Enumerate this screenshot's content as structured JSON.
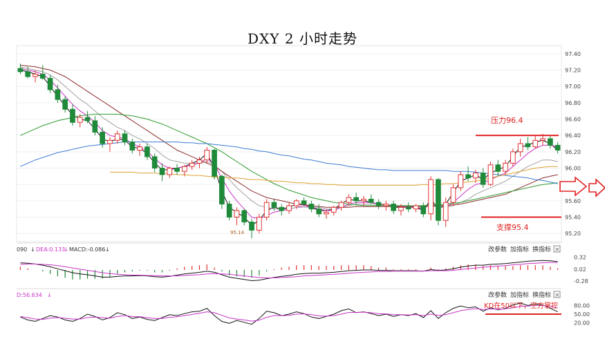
{
  "title": "DXY 2 小时走势",
  "price_axis": {
    "ticks": [
      "97.40",
      "97.20",
      "97.00",
      "96.80",
      "96.60",
      "96.40",
      "96.20",
      "96.00",
      "95.80",
      "95.60",
      "95.40",
      "95.20"
    ]
  },
  "macd_axis": {
    "ticks": [
      "0.32",
      "0.02",
      "-0.28"
    ]
  },
  "kd_axis": {
    "ticks": [
      "80.00",
      "50.00",
      "20.00"
    ]
  },
  "macd_header": {
    "dif_fragment": "090",
    "dea": "DEA:0.133",
    "macd": "MACD:-0.086"
  },
  "kd_header": {
    "d": "D:56.634"
  },
  "panel_buttons": {
    "params": "改参数",
    "add": "加指标",
    "switch": "换指标",
    "close": "×"
  },
  "annotations": {
    "resistance": "压力96.4",
    "support": "支撑95.4",
    "low": "95.14",
    "kd_note": "KD在50以下，空方掌控"
  },
  "colors": {
    "annotation": "#e02020",
    "up": "#e03030",
    "down": "#1f8a3a",
    "ma_black": "#111111",
    "ma_magenta": "#c832c8",
    "ma_gray": "#a0a0a0",
    "ma_brown": "#8b2a2a",
    "ma_green": "#2e9a2e",
    "ma_blue": "#3a7bd5",
    "ma_orange": "#e0a030"
  },
  "chart_data": {
    "type": "candlestick",
    "title": "DXY 2 小时走势",
    "ylim": [
      95.1,
      97.5
    ],
    "candles": [
      [
        97.22,
        97.28,
        97.15,
        97.18
      ],
      [
        97.18,
        97.24,
        97.1,
        97.12
      ],
      [
        97.12,
        97.2,
        97.05,
        97.15
      ],
      [
        97.15,
        97.26,
        97.08,
        97.1
      ],
      [
        97.1,
        97.14,
        96.92,
        96.96
      ],
      [
        96.96,
        97.02,
        96.8,
        96.84
      ],
      [
        96.84,
        96.88,
        96.68,
        96.72
      ],
      [
        96.72,
        96.78,
        96.52,
        96.56
      ],
      [
        96.56,
        96.66,
        96.5,
        96.62
      ],
      [
        96.62,
        96.7,
        96.55,
        96.58
      ],
      [
        96.58,
        96.64,
        96.4,
        96.44
      ],
      [
        96.44,
        96.5,
        96.25,
        96.3
      ],
      [
        96.3,
        96.38,
        96.2,
        96.34
      ],
      [
        96.34,
        96.46,
        96.3,
        96.42
      ],
      [
        96.42,
        96.46,
        96.28,
        96.32
      ],
      [
        96.32,
        96.36,
        96.18,
        96.22
      ],
      [
        96.22,
        96.3,
        96.15,
        96.26
      ],
      [
        96.26,
        96.3,
        96.1,
        96.14
      ],
      [
        96.14,
        96.18,
        95.95,
        96.0
      ],
      [
        96.0,
        96.06,
        95.84,
        95.92
      ],
      [
        95.92,
        96.02,
        95.88,
        96.0
      ],
      [
        96.0,
        96.05,
        95.92,
        95.96
      ],
      [
        95.96,
        96.04,
        95.9,
        96.02
      ],
      [
        96.02,
        96.1,
        95.98,
        96.06
      ],
      [
        96.06,
        96.14,
        96.0,
        96.1
      ],
      [
        96.1,
        96.26,
        96.06,
        96.22
      ],
      [
        96.22,
        96.24,
        95.86,
        95.9
      ],
      [
        95.9,
        95.92,
        95.5,
        95.56
      ],
      [
        95.56,
        95.6,
        95.36,
        95.4
      ],
      [
        95.4,
        95.52,
        95.3,
        95.48
      ],
      [
        95.48,
        95.5,
        95.3,
        95.34
      ],
      [
        95.34,
        95.38,
        95.14,
        95.24
      ],
      [
        95.24,
        95.44,
        95.2,
        95.4
      ],
      [
        95.4,
        95.62,
        95.36,
        95.58
      ],
      [
        95.58,
        95.62,
        95.48,
        95.52
      ],
      [
        95.52,
        95.56,
        95.42,
        95.48
      ],
      [
        95.48,
        95.58,
        95.44,
        95.54
      ],
      [
        95.54,
        95.62,
        95.5,
        95.6
      ],
      [
        95.6,
        95.64,
        95.54,
        95.56
      ],
      [
        95.56,
        95.6,
        95.46,
        95.5
      ],
      [
        95.5,
        95.56,
        95.4,
        95.44
      ],
      [
        95.44,
        95.5,
        95.38,
        95.46
      ],
      [
        95.46,
        95.54,
        95.42,
        95.52
      ],
      [
        95.52,
        95.6,
        95.48,
        95.58
      ],
      [
        95.58,
        95.68,
        95.54,
        95.64
      ],
      [
        95.64,
        95.7,
        95.56,
        95.6
      ],
      [
        95.6,
        95.66,
        95.54,
        95.62
      ],
      [
        95.62,
        95.68,
        95.56,
        95.58
      ],
      [
        95.58,
        95.62,
        95.5,
        95.54
      ],
      [
        95.54,
        95.6,
        95.48,
        95.56
      ],
      [
        95.56,
        95.6,
        95.44,
        95.48
      ],
      [
        95.48,
        95.56,
        95.42,
        95.52
      ],
      [
        95.52,
        95.58,
        95.46,
        95.5
      ],
      [
        95.5,
        95.56,
        95.46,
        95.54
      ],
      [
        95.54,
        95.58,
        95.4,
        95.44
      ],
      [
        95.44,
        95.9,
        95.36,
        95.86
      ],
      [
        95.86,
        95.88,
        95.3,
        95.36
      ],
      [
        95.36,
        95.64,
        95.28,
        95.58
      ],
      [
        95.58,
        95.8,
        95.54,
        95.76
      ],
      [
        95.76,
        95.96,
        95.72,
        95.92
      ],
      [
        95.92,
        96.02,
        95.84,
        95.88
      ],
      [
        95.88,
        95.98,
        95.82,
        95.94
      ],
      [
        95.94,
        96.0,
        95.76,
        95.8
      ],
      [
        95.8,
        96.08,
        95.78,
        96.04
      ],
      [
        96.04,
        96.1,
        95.9,
        95.96
      ],
      [
        95.96,
        96.1,
        95.92,
        96.06
      ],
      [
        96.06,
        96.24,
        96.02,
        96.2
      ],
      [
        96.2,
        96.36,
        96.14,
        96.3
      ],
      [
        96.3,
        96.38,
        96.22,
        96.26
      ],
      [
        96.26,
        96.4,
        96.24,
        96.34
      ],
      [
        96.34,
        96.42,
        96.28,
        96.36
      ],
      [
        96.36,
        96.4,
        96.24,
        96.28
      ],
      [
        96.28,
        96.32,
        96.18,
        96.22
      ]
    ],
    "moving_averages": [
      {
        "values": [
          97.2,
          97.18,
          97.15,
          97.12,
          97.0,
          96.88,
          96.76,
          96.65,
          96.6,
          96.58,
          96.48,
          96.36,
          96.32,
          96.36,
          96.34,
          96.26,
          96.24,
          96.18,
          96.06,
          95.98,
          95.98,
          96.0,
          96.02,
          96.06,
          96.1,
          96.18,
          96.0,
          95.72,
          95.52,
          95.46,
          95.4,
          95.3,
          95.36,
          95.48,
          95.52,
          95.5,
          95.52,
          95.56,
          95.56,
          95.52,
          95.48,
          95.48,
          95.5,
          95.56,
          95.62,
          95.6,
          95.6,
          95.58,
          95.56,
          95.55,
          95.52,
          95.52,
          95.52,
          95.52,
          95.48,
          95.62,
          95.5,
          95.56,
          95.7,
          95.84,
          95.88,
          95.92,
          95.86,
          95.94,
          95.98,
          96.02,
          96.14,
          96.26,
          96.28,
          96.32,
          96.34,
          96.3,
          96.22
        ]
      },
      {
        "values": [
          97.22,
          97.2,
          97.18,
          97.15,
          97.08,
          96.98,
          96.88,
          96.78,
          96.7,
          96.64,
          96.56,
          96.46,
          96.4,
          96.38,
          96.36,
          96.3,
          96.26,
          96.2,
          96.12,
          96.04,
          96.0,
          96.0,
          96.02,
          96.04,
          96.06,
          96.12,
          96.04,
          95.88,
          95.72,
          95.6,
          95.5,
          95.4,
          95.38,
          95.42,
          95.46,
          95.48,
          95.5,
          95.52,
          95.54,
          95.52,
          95.5,
          95.48,
          95.48,
          95.52,
          95.56,
          95.58,
          95.58,
          95.58,
          95.56,
          95.56,
          95.54,
          95.52,
          95.52,
          95.52,
          95.5,
          95.56,
          95.52,
          95.52,
          95.58,
          95.66,
          95.74,
          95.8,
          95.82,
          95.86,
          95.9,
          95.94,
          96.02,
          96.1,
          96.18,
          96.24,
          96.28,
          96.28,
          96.26
        ]
      },
      {
        "values": [
          97.24,
          97.22,
          97.2,
          97.18,
          97.14,
          97.08,
          97.0,
          96.92,
          96.84,
          96.78,
          96.7,
          96.62,
          96.56,
          96.5,
          96.46,
          96.4,
          96.36,
          96.3,
          96.24,
          96.16,
          96.1,
          96.08,
          96.06,
          96.06,
          96.06,
          96.08,
          96.04,
          95.96,
          95.86,
          95.76,
          95.68,
          95.6,
          95.54,
          95.52,
          95.5,
          95.5,
          95.5,
          95.52,
          95.52,
          95.52,
          95.52,
          95.5,
          95.5,
          95.52,
          95.54,
          95.56,
          95.56,
          95.56,
          95.56,
          95.56,
          95.54,
          95.54,
          95.54,
          95.52,
          95.52,
          95.54,
          95.52,
          95.52,
          95.54,
          95.58,
          95.62,
          95.68,
          95.72,
          95.76,
          95.8,
          95.84,
          95.9,
          95.96,
          96.02,
          96.06,
          96.1,
          96.1,
          96.08
        ]
      },
      {
        "values": [
          97.26,
          97.25,
          97.24,
          97.22,
          97.2,
          97.16,
          97.12,
          97.06,
          97.0,
          96.94,
          96.88,
          96.82,
          96.76,
          96.7,
          96.64,
          96.58,
          96.52,
          96.46,
          96.4,
          96.34,
          96.28,
          96.22,
          96.18,
          96.14,
          96.1,
          96.06,
          96.02,
          95.96,
          95.9,
          95.84,
          95.78,
          95.72,
          95.68,
          95.64,
          95.62,
          95.6,
          95.58,
          95.56,
          95.55,
          95.54,
          95.53,
          95.52,
          95.52,
          95.52,
          95.52,
          95.53,
          95.53,
          95.53,
          95.53,
          95.53,
          95.53,
          95.53,
          95.53,
          95.53,
          95.53,
          95.54,
          95.54,
          95.54,
          95.55,
          95.56,
          95.58,
          95.6,
          95.62,
          95.64,
          95.66,
          95.68,
          95.72,
          95.76,
          95.8,
          95.84,
          95.88,
          95.9,
          95.92
        ]
      },
      {
        "values": [
          96.4,
          96.44,
          96.48,
          96.52,
          96.55,
          96.58,
          96.6,
          96.62,
          96.64,
          96.65,
          96.66,
          96.66,
          96.66,
          96.66,
          96.65,
          96.64,
          96.62,
          96.6,
          96.57,
          96.54,
          96.5,
          96.46,
          96.42,
          96.38,
          96.34,
          96.3,
          96.25,
          96.2,
          96.14,
          96.08,
          96.02,
          95.96,
          95.91,
          95.86,
          95.81,
          95.77,
          95.73,
          95.7,
          95.67,
          95.64,
          95.62,
          95.6,
          95.58,
          95.57,
          95.56,
          95.55,
          95.54,
          95.54,
          95.54,
          95.54,
          95.54,
          95.54,
          95.54,
          95.54,
          95.54,
          95.55,
          95.55,
          95.56,
          95.57,
          95.58,
          95.6,
          95.62,
          95.64,
          95.66,
          95.68,
          95.7,
          95.72,
          95.74,
          95.76,
          95.78,
          95.8,
          95.81,
          95.82
        ]
      },
      {
        "values": [
          96.02,
          96.06,
          96.1,
          96.13,
          96.16,
          96.19,
          96.21,
          96.23,
          96.25,
          96.27,
          96.28,
          96.29,
          96.3,
          96.31,
          96.32,
          96.32,
          96.32,
          96.32,
          96.32,
          96.32,
          96.32,
          96.32,
          96.31,
          96.31,
          96.3,
          96.3,
          96.29,
          96.28,
          96.27,
          96.26,
          96.24,
          96.23,
          96.21,
          96.2,
          96.18,
          96.16,
          96.15,
          96.13,
          96.11,
          96.1,
          96.08,
          96.06,
          96.05,
          96.04,
          96.02,
          96.01,
          96.0,
          95.99,
          95.98,
          95.98,
          95.97,
          95.97,
          95.97,
          95.97,
          95.97,
          95.97,
          95.97,
          95.97,
          95.96,
          95.96,
          95.96,
          95.95,
          95.94,
          95.93,
          95.92,
          95.91,
          95.9,
          95.89,
          95.88,
          95.86,
          95.85,
          95.83,
          95.81
        ]
      },
      {
        "x_start": 12,
        "values": [
          95.95,
          95.95,
          95.95,
          95.95,
          95.94,
          95.94,
          95.94,
          95.93,
          95.93,
          95.92,
          95.92,
          95.91,
          95.91,
          95.9,
          95.89,
          95.89,
          95.88,
          95.88,
          95.87,
          95.86,
          95.86,
          95.85,
          95.84,
          95.84,
          95.83,
          95.82,
          95.82,
          95.81,
          95.81,
          95.8,
          95.8,
          95.79,
          95.79,
          95.79,
          95.79,
          95.79,
          95.79,
          95.79,
          95.79,
          95.79,
          95.79,
          95.79,
          95.8,
          95.8,
          95.8,
          95.81,
          95.81,
          95.82,
          95.83,
          95.84,
          95.86,
          95.88,
          95.9,
          95.92,
          95.94,
          95.96,
          95.98,
          96.0,
          96.01,
          96.02,
          96.02
        ]
      }
    ],
    "resistance_level": 96.4,
    "support_level": 95.4,
    "macd": {
      "ylim": [
        -0.4,
        0.4
      ],
      "dif": [
        0.18,
        0.17,
        0.15,
        0.12,
        0.08,
        0.03,
        -0.02,
        -0.07,
        -0.1,
        -0.12,
        -0.15,
        -0.18,
        -0.18,
        -0.16,
        -0.15,
        -0.15,
        -0.14,
        -0.15,
        -0.17,
        -0.18,
        -0.16,
        -0.13,
        -0.1,
        -0.08,
        -0.06,
        -0.03,
        -0.06,
        -0.12,
        -0.18,
        -0.21,
        -0.24,
        -0.27,
        -0.26,
        -0.22,
        -0.19,
        -0.16,
        -0.14,
        -0.11,
        -0.09,
        -0.08,
        -0.08,
        -0.07,
        -0.06,
        -0.04,
        -0.02,
        -0.01,
        0.0,
        0.0,
        -0.01,
        -0.01,
        -0.02,
        -0.02,
        -0.02,
        -0.02,
        -0.03,
        0.01,
        -0.01,
        0.0,
        0.03,
        0.07,
        0.1,
        0.12,
        0.12,
        0.14,
        0.15,
        0.16,
        0.18,
        0.2,
        0.22,
        0.23,
        0.24,
        0.23,
        0.21
      ],
      "dea": [
        0.14,
        0.15,
        0.15,
        0.14,
        0.13,
        0.11,
        0.08,
        0.05,
        0.02,
        -0.01,
        -0.04,
        -0.07,
        -0.09,
        -0.11,
        -0.12,
        -0.13,
        -0.13,
        -0.14,
        -0.14,
        -0.15,
        -0.15,
        -0.15,
        -0.14,
        -0.13,
        -0.12,
        -0.1,
        -0.09,
        -0.1,
        -0.11,
        -0.13,
        -0.15,
        -0.17,
        -0.19,
        -0.2,
        -0.2,
        -0.19,
        -0.18,
        -0.17,
        -0.15,
        -0.14,
        -0.13,
        -0.12,
        -0.11,
        -0.1,
        -0.08,
        -0.07,
        -0.06,
        -0.05,
        -0.04,
        -0.04,
        -0.03,
        -0.03,
        -0.03,
        -0.03,
        -0.03,
        -0.02,
        -0.02,
        -0.02,
        -0.01,
        0.01,
        0.03,
        0.05,
        0.07,
        0.08,
        0.1,
        0.11,
        0.13,
        0.14,
        0.16,
        0.17,
        0.18,
        0.19,
        0.19
      ]
    },
    "kd": {
      "ylim": [
        0,
        100
      ],
      "k": [
        40,
        30,
        25,
        35,
        45,
        40,
        30,
        25,
        35,
        50,
        42,
        30,
        38,
        55,
        48,
        35,
        40,
        32,
        28,
        38,
        48,
        45,
        52,
        58,
        60,
        70,
        45,
        25,
        18,
        28,
        22,
        15,
        35,
        60,
        55,
        45,
        50,
        58,
        52,
        40,
        35,
        42,
        50,
        62,
        68,
        55,
        58,
        52,
        45,
        50,
        42,
        48,
        45,
        52,
        38,
        62,
        35,
        55,
        70,
        78,
        72,
        75,
        60,
        72,
        65,
        70,
        82,
        88,
        80,
        85,
        82,
        70,
        58
      ],
      "d": [
        42,
        38,
        33,
        32,
        36,
        38,
        36,
        33,
        33,
        38,
        40,
        38,
        36,
        42,
        45,
        42,
        41,
        38,
        35,
        35,
        39,
        41,
        45,
        49,
        53,
        58,
        55,
        46,
        37,
        33,
        30,
        26,
        29,
        39,
        45,
        45,
        46,
        50,
        51,
        48,
        44,
        43,
        45,
        50,
        56,
        56,
        57,
        55,
        52,
        51,
        48,
        48,
        47,
        48,
        45,
        50,
        46,
        48,
        55,
        62,
        66,
        69,
        66,
        68,
        67,
        68,
        72,
        77,
        78,
        80,
        80,
        77,
        71
      ]
    }
  }
}
